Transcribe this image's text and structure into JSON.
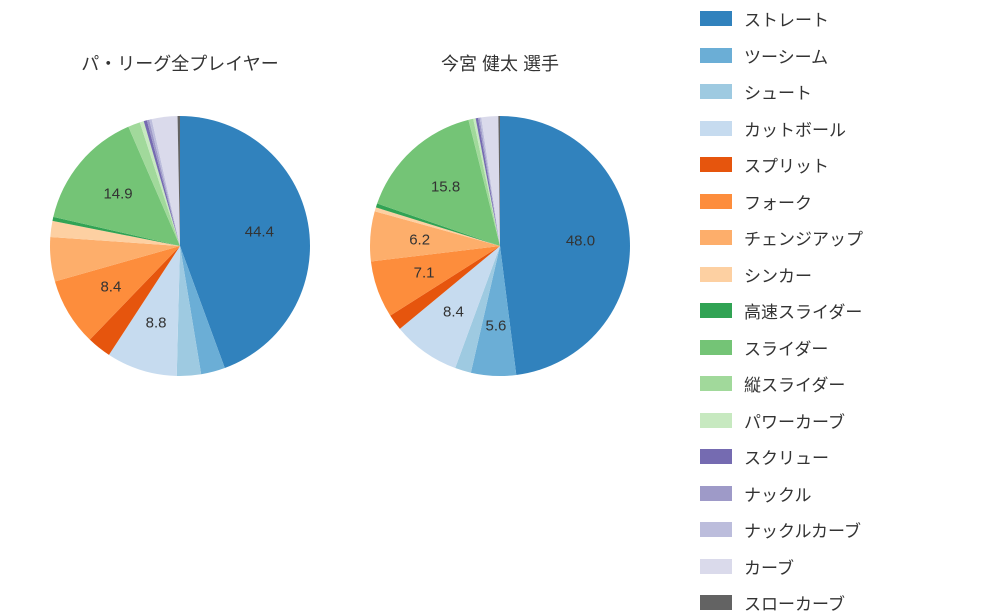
{
  "colors": {
    "background": "#ffffff",
    "text": "#333333"
  },
  "typography": {
    "title_fontsize": 18,
    "label_fontsize": 15,
    "legend_fontsize": 17
  },
  "pitch_types": [
    {
      "name": "ストレート",
      "color": "#3182bd"
    },
    {
      "name": "ツーシーム",
      "color": "#6baed6"
    },
    {
      "name": "シュート",
      "color": "#9ecae1"
    },
    {
      "name": "カットボール",
      "color": "#c6dbef"
    },
    {
      "name": "スプリット",
      "color": "#e6550d"
    },
    {
      "name": "フォーク",
      "color": "#fd8d3c"
    },
    {
      "name": "チェンジアップ",
      "color": "#fdae6b"
    },
    {
      "name": "シンカー",
      "color": "#fdd0a2"
    },
    {
      "name": "高速スライダー",
      "color": "#31a354"
    },
    {
      "name": "スライダー",
      "color": "#74c476"
    },
    {
      "name": "縦スライダー",
      "color": "#a1d99b"
    },
    {
      "name": "パワーカーブ",
      "color": "#c7e9c0"
    },
    {
      "name": "スクリュー",
      "color": "#756bb1"
    },
    {
      "name": "ナックル",
      "color": "#9e9ac8"
    },
    {
      "name": "ナックルカーブ",
      "color": "#bcbddc"
    },
    {
      "name": "カーブ",
      "color": "#dadaeb"
    },
    {
      "name": "スローカーブ",
      "color": "#636363"
    }
  ],
  "charts": [
    {
      "title": "パ・リーグ全プレイヤー",
      "type": "pie",
      "start_angle": 90,
      "direction": "clockwise",
      "radius": 130,
      "slices": [
        {
          "pitch": "ストレート",
          "value": 44.4,
          "label": "44.4",
          "show_label": true
        },
        {
          "pitch": "ツーシーム",
          "value": 3.0,
          "label": "",
          "show_label": false
        },
        {
          "pitch": "シュート",
          "value": 3.0,
          "label": "",
          "show_label": false
        },
        {
          "pitch": "カットボール",
          "value": 8.8,
          "label": "8.8",
          "show_label": true
        },
        {
          "pitch": "スプリット",
          "value": 3.0,
          "label": "",
          "show_label": false
        },
        {
          "pitch": "フォーク",
          "value": 8.4,
          "label": "8.4",
          "show_label": true
        },
        {
          "pitch": "チェンジアップ",
          "value": 5.5,
          "label": "",
          "show_label": false
        },
        {
          "pitch": "シンカー",
          "value": 2.0,
          "label": "",
          "show_label": false
        },
        {
          "pitch": "高速スライダー",
          "value": 0.5,
          "label": "",
          "show_label": false
        },
        {
          "pitch": "スライダー",
          "value": 14.9,
          "label": "14.9",
          "show_label": true
        },
        {
          "pitch": "縦スライダー",
          "value": 1.5,
          "label": "",
          "show_label": false
        },
        {
          "pitch": "パワーカーブ",
          "value": 0.5,
          "label": "",
          "show_label": false
        },
        {
          "pitch": "スクリュー",
          "value": 0.4,
          "label": "",
          "show_label": false
        },
        {
          "pitch": "ナックル",
          "value": 0.3,
          "label": "",
          "show_label": false
        },
        {
          "pitch": "ナックルカーブ",
          "value": 0.3,
          "label": "",
          "show_label": false
        },
        {
          "pitch": "カーブ",
          "value": 3.2,
          "label": "",
          "show_label": false
        },
        {
          "pitch": "スローカーブ",
          "value": 0.3,
          "label": "",
          "show_label": false
        }
      ]
    },
    {
      "title": "今宮 健太   選手",
      "type": "pie",
      "start_angle": 90,
      "direction": "clockwise",
      "radius": 130,
      "slices": [
        {
          "pitch": "ストレート",
          "value": 48.0,
          "label": "48.0",
          "show_label": true
        },
        {
          "pitch": "ツーシーム",
          "value": 5.6,
          "label": "5.6",
          "show_label": true
        },
        {
          "pitch": "シュート",
          "value": 2.0,
          "label": "",
          "show_label": false
        },
        {
          "pitch": "カットボール",
          "value": 8.4,
          "label": "8.4",
          "show_label": true
        },
        {
          "pitch": "スプリット",
          "value": 2.0,
          "label": "",
          "show_label": false
        },
        {
          "pitch": "フォーク",
          "value": 7.1,
          "label": "7.1",
          "show_label": true
        },
        {
          "pitch": "チェンジアップ",
          "value": 6.2,
          "label": "6.2",
          "show_label": true
        },
        {
          "pitch": "シンカー",
          "value": 0.5,
          "label": "",
          "show_label": false
        },
        {
          "pitch": "高速スライダー",
          "value": 0.5,
          "label": "",
          "show_label": false
        },
        {
          "pitch": "スライダー",
          "value": 15.8,
          "label": "15.8",
          "show_label": true
        },
        {
          "pitch": "縦スライダー",
          "value": 0.6,
          "label": "",
          "show_label": false
        },
        {
          "pitch": "パワーカーブ",
          "value": 0.3,
          "label": "",
          "show_label": false
        },
        {
          "pitch": "スクリュー",
          "value": 0.3,
          "label": "",
          "show_label": false
        },
        {
          "pitch": "ナックル",
          "value": 0.2,
          "label": "",
          "show_label": false
        },
        {
          "pitch": "ナックルカーブ",
          "value": 0.2,
          "label": "",
          "show_label": false
        },
        {
          "pitch": "カーブ",
          "value": 2.1,
          "label": "",
          "show_label": false
        },
        {
          "pitch": "スローカーブ",
          "value": 0.2,
          "label": "",
          "show_label": false
        }
      ]
    }
  ]
}
